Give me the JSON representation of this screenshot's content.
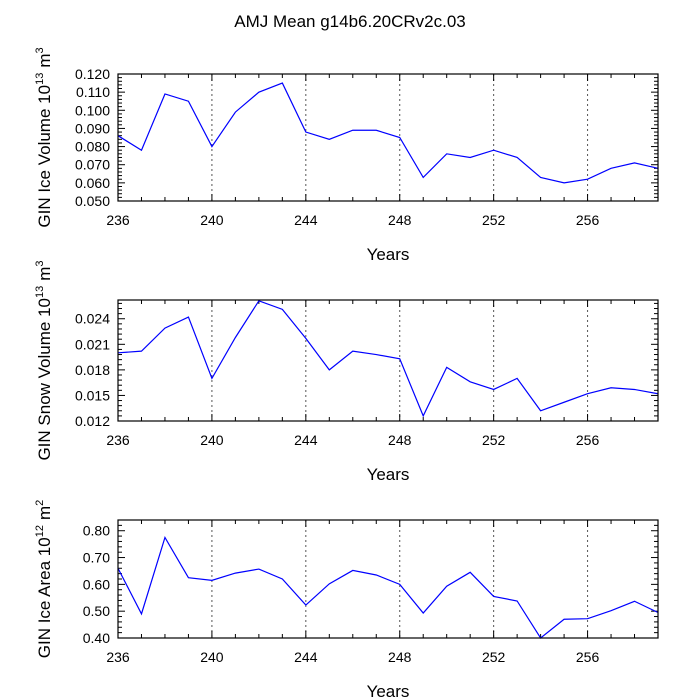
{
  "title": "AMJ Mean g14b6.20CRv2c.03",
  "colors": {
    "line": "#0000ff",
    "axis": "#000000",
    "grid": "#555555"
  },
  "chart_data": [
    {
      "type": "line",
      "ylabel": "GIN Ice Volume",
      "ylabel_exp": "13",
      "ylabel_unit": "m",
      "ylabel_unit_exp": "3",
      "xlabel": "Years",
      "xlim": [
        236,
        259
      ],
      "ylim": [
        0.05,
        0.12
      ],
      "xticks": [
        236,
        240,
        244,
        248,
        252,
        256
      ],
      "xtick_labels": [
        "236",
        "240",
        "244",
        "248",
        "252",
        "256"
      ],
      "yticks": [
        0.05,
        0.06,
        0.07,
        0.08,
        0.09,
        0.1,
        0.11,
        0.12
      ],
      "ytick_labels": [
        "0.050",
        "0.060",
        "0.070",
        "0.080",
        "0.090",
        "0.100",
        "0.110",
        "0.120"
      ],
      "grid_x": [
        240,
        244,
        248,
        252,
        256
      ],
      "x": [
        236,
        237,
        238,
        239,
        240,
        241,
        242,
        243,
        244,
        245,
        246,
        247,
        248,
        249,
        250,
        251,
        252,
        253,
        254,
        255,
        256,
        257,
        258,
        259
      ],
      "values": [
        0.086,
        0.078,
        0.109,
        0.105,
        0.08,
        0.099,
        0.11,
        0.115,
        0.088,
        0.084,
        0.089,
        0.089,
        0.085,
        0.063,
        0.076,
        0.074,
        0.078,
        0.074,
        0.063,
        0.06,
        0.062,
        0.068,
        0.071,
        0.068
      ]
    },
    {
      "type": "line",
      "ylabel": "GIN Snow Volume",
      "ylabel_exp": "13",
      "ylabel_unit": "m",
      "ylabel_unit_exp": "3",
      "xlabel": "Years",
      "xlim": [
        236,
        259
      ],
      "ylim": [
        0.012,
        0.0262
      ],
      "xticks": [
        236,
        240,
        244,
        248,
        252,
        256
      ],
      "xtick_labels": [
        "236",
        "240",
        "244",
        "248",
        "252",
        "256"
      ],
      "yticks": [
        0.012,
        0.015,
        0.018,
        0.021,
        0.024
      ],
      "ytick_labels": [
        "0.012",
        "0.015",
        "0.018",
        "0.021",
        "0.024"
      ],
      "grid_x": [
        240,
        244,
        248,
        252,
        256
      ],
      "x": [
        236,
        237,
        238,
        239,
        240,
        241,
        242,
        243,
        244,
        245,
        246,
        247,
        248,
        249,
        250,
        251,
        252,
        253,
        254,
        255,
        256,
        257,
        258,
        259
      ],
      "values": [
        0.02,
        0.0202,
        0.0229,
        0.0242,
        0.017,
        0.0218,
        0.0261,
        0.0251,
        0.0217,
        0.018,
        0.0202,
        0.0198,
        0.0193,
        0.0126,
        0.0183,
        0.0166,
        0.0157,
        0.017,
        0.0132,
        0.0142,
        0.0152,
        0.0159,
        0.0157,
        0.0152
      ]
    },
    {
      "type": "line",
      "ylabel": "GIN Ice Area",
      "ylabel_exp": "12",
      "ylabel_unit": "m",
      "ylabel_unit_exp": "2",
      "xlabel": "Years",
      "xlim": [
        236,
        259
      ],
      "ylim": [
        0.4,
        0.84
      ],
      "xticks": [
        236,
        240,
        244,
        248,
        252,
        256
      ],
      "xtick_labels": [
        "236",
        "240",
        "244",
        "248",
        "252",
        "256"
      ],
      "yticks": [
        0.4,
        0.5,
        0.6,
        0.7,
        0.8
      ],
      "ytick_labels": [
        "0.40",
        "0.50",
        "0.60",
        "0.70",
        "0.80"
      ],
      "grid_x": [
        240,
        244,
        248,
        252,
        256
      ],
      "x": [
        236,
        237,
        238,
        239,
        240,
        241,
        242,
        243,
        244,
        245,
        246,
        247,
        248,
        249,
        250,
        251,
        252,
        253,
        254,
        255,
        256,
        257,
        258,
        259
      ],
      "values": [
        0.66,
        0.49,
        0.775,
        0.625,
        0.615,
        0.642,
        0.657,
        0.62,
        0.523,
        0.602,
        0.652,
        0.635,
        0.6,
        0.493,
        0.593,
        0.645,
        0.555,
        0.538,
        0.4,
        0.47,
        0.472,
        0.502,
        0.537,
        0.495
      ]
    }
  ]
}
